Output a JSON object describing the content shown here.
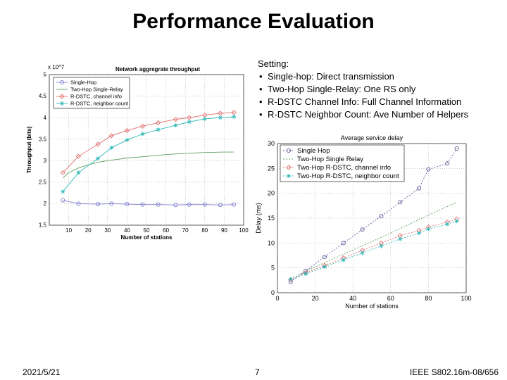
{
  "slide": {
    "title": "Performance Evaluation",
    "setting_heading": "Setting:",
    "setting_items": [
      "Single-hop: Direct transmission",
      "Two-Hop Single-Relay: One RS only",
      "R-DSTC Channel Info: Full Channel Information",
      "R-DSTC Neighbor Count: Ave Number of Helpers"
    ],
    "footer_date": "2021/5/21",
    "footer_page": "7",
    "footer_ref": "IEEE S802.16m-08/656"
  },
  "chart_data": [
    {
      "type": "line",
      "title": "Network aggregrate throughput",
      "xlabel": "Number of stations",
      "ylabel": "Throughput (bits)",
      "exponent_label": "x 10^7",
      "xlim": [
        0,
        100
      ],
      "ylim": [
        1.5,
        5
      ],
      "xticks": [
        10,
        20,
        30,
        40,
        50,
        60,
        70,
        80,
        90,
        100
      ],
      "yticks": [
        1.5,
        2,
        2.5,
        3,
        3.5,
        4,
        4.5,
        5
      ],
      "grid": true,
      "legend_position": "top-left",
      "series": [
        {
          "name": "Single-Hop",
          "color": "#8080d0",
          "marker": "circle",
          "x": [
            7,
            15,
            25,
            32,
            40,
            48,
            56,
            65,
            72,
            80,
            88,
            95
          ],
          "y": [
            2.08,
            2.0,
            1.99,
            2.0,
            1.99,
            1.98,
            1.98,
            1.97,
            1.98,
            1.98,
            1.97,
            1.98
          ]
        },
        {
          "name": "Two-Hop Single-Relay",
          "color": "#60a060",
          "marker": "none",
          "x": [
            7,
            10,
            15,
            20,
            25,
            30,
            40,
            50,
            60,
            70,
            80,
            90,
            95
          ],
          "y": [
            2.6,
            2.72,
            2.83,
            2.9,
            2.96,
            3.0,
            3.06,
            3.1,
            3.14,
            3.17,
            3.19,
            3.2,
            3.2
          ]
        },
        {
          "name": "R-DSTC, channel info",
          "color": "#e07070",
          "marker": "diamond",
          "x": [
            7,
            15,
            25,
            32,
            40,
            48,
            56,
            65,
            72,
            80,
            88,
            95
          ],
          "y": [
            2.72,
            3.1,
            3.38,
            3.58,
            3.7,
            3.8,
            3.88,
            3.96,
            4.0,
            4.06,
            4.1,
            4.12
          ]
        },
        {
          "name": "R-DSTC, neighbor count",
          "color": "#30b8b8",
          "marker": "star",
          "x": [
            7,
            15,
            25,
            32,
            40,
            48,
            56,
            65,
            72,
            80,
            88,
            95
          ],
          "y": [
            2.28,
            2.72,
            3.05,
            3.3,
            3.48,
            3.62,
            3.72,
            3.82,
            3.9,
            3.97,
            4.0,
            4.02
          ]
        }
      ]
    },
    {
      "type": "line",
      "title": "Average service delay",
      "xlabel": "Number of stations",
      "ylabel": "Delay (ms)",
      "xlim": [
        0,
        100
      ],
      "ylim": [
        0,
        30
      ],
      "xticks": [
        0,
        20,
        40,
        60,
        80,
        100
      ],
      "yticks": [
        0,
        5,
        10,
        15,
        20,
        25,
        30
      ],
      "grid": true,
      "legend_position": "top-left",
      "series": [
        {
          "name": "Single Hop",
          "color": "#6060a0",
          "marker": "circle",
          "x": [
            7,
            15,
            25,
            35,
            45,
            55,
            65,
            75,
            80,
            90,
            95
          ],
          "y": [
            2.2,
            4.4,
            7.2,
            10.0,
            12.7,
            15.4,
            18.2,
            21.0,
            24.8,
            26.0,
            29.0
          ]
        },
        {
          "name": "Two-Hop Single Relay",
          "color": "#60a060",
          "marker": "none",
          "x": [
            7,
            20,
            40,
            60,
            80,
            95
          ],
          "y": [
            2.8,
            5.2,
            8.6,
            12.0,
            15.6,
            18.2
          ]
        },
        {
          "name": "Two-Hop R-DSTC, channel info",
          "color": "#e07070",
          "marker": "diamond",
          "x": [
            7,
            15,
            25,
            35,
            45,
            55,
            65,
            75,
            80,
            90,
            95
          ],
          "y": [
            2.6,
            4.0,
            5.5,
            7.0,
            8.5,
            10.0,
            11.5,
            12.5,
            13.2,
            14.2,
            14.8
          ]
        },
        {
          "name": "Two-Hop R-DSTC, neighbor count",
          "color": "#30b8b8",
          "marker": "star",
          "x": [
            7,
            15,
            25,
            35,
            45,
            55,
            65,
            75,
            80,
            90,
            95
          ],
          "y": [
            2.7,
            3.8,
            5.2,
            6.6,
            8.0,
            9.4,
            10.8,
            12.0,
            12.8,
            13.8,
            14.4
          ]
        }
      ]
    }
  ]
}
